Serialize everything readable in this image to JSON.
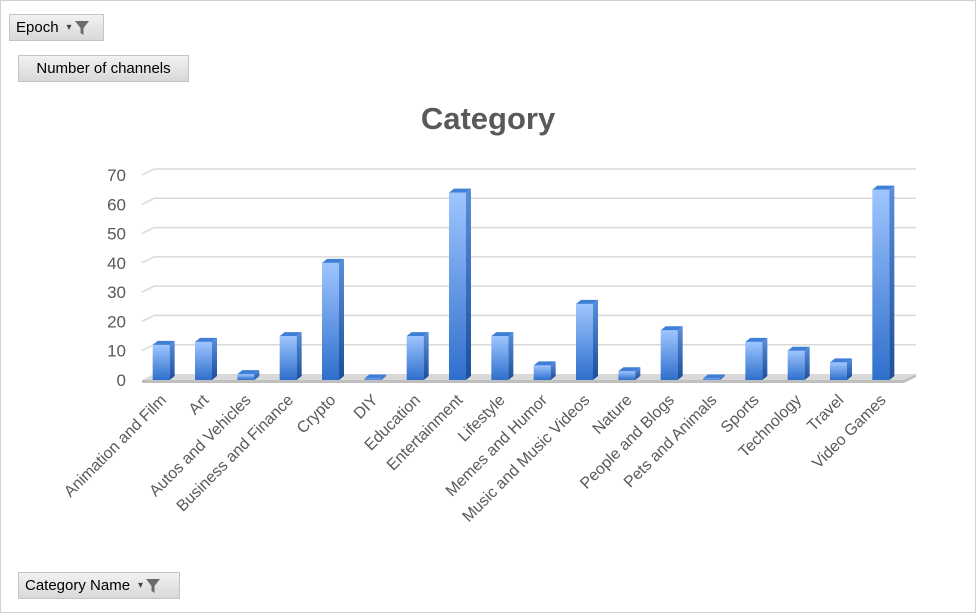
{
  "filters": {
    "epoch_label": "Epoch",
    "series_label": "Number of channels",
    "category_label": "Category Name"
  },
  "icons": {
    "filter": "filter-funnel-icon",
    "dropdown": "chevron-down-icon"
  },
  "colors": {
    "bar_light": "#9fc5ff",
    "bar_dark": "#2e6fcc",
    "grid": "#d9d9d9",
    "text": "#595959"
  },
  "chart_data": {
    "type": "bar",
    "title": "Category",
    "xlabel": "",
    "ylabel": "",
    "ylim": [
      0,
      70
    ],
    "yticks": [
      0,
      10,
      20,
      30,
      40,
      50,
      60,
      70
    ],
    "grid": true,
    "three_d": true,
    "categories": [
      "Animation and Film",
      "Art",
      "Autos and Vehicles",
      "Business and Finance",
      "Crypto",
      "DIY",
      "Education",
      "Entertainment",
      "Lifestyle",
      "Memes and Humor",
      "Music and Music Videos",
      "Nature",
      "People and Blogs",
      "Pets and Animals",
      "Sports",
      "Technology",
      "Travel",
      "Video Games"
    ],
    "series": [
      {
        "values": [
          12,
          13,
          2,
          15,
          40,
          0.5,
          15,
          64,
          15,
          5,
          26,
          3,
          17,
          0.5,
          13,
          10,
          6,
          65
        ]
      }
    ]
  }
}
